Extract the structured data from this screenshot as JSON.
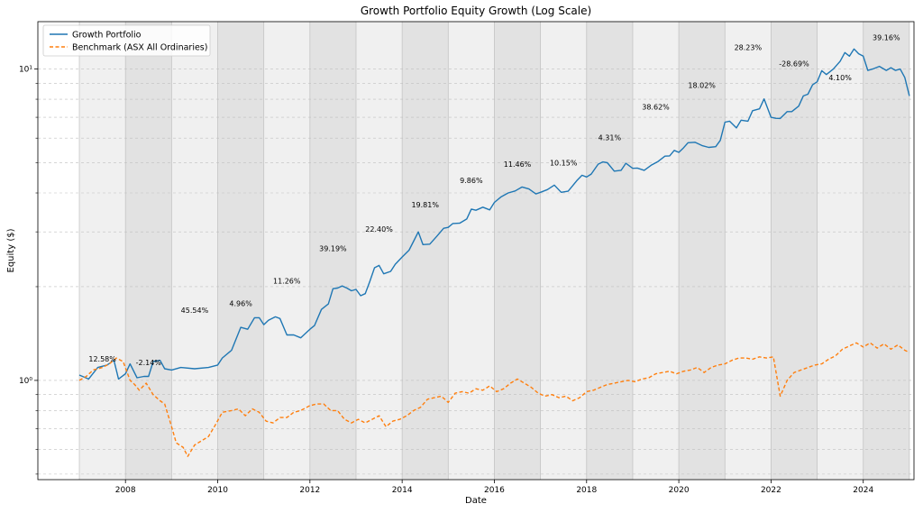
{
  "chart_data": {
    "type": "line",
    "title": "Growth Portfolio Equity Growth (Log Scale)",
    "xlabel": "Date",
    "ylabel": "Equity ($)",
    "y_scale": "log",
    "xlim": [
      2006.1,
      2025.1
    ],
    "ylim": [
      0.48,
      14.2
    ],
    "x_ticks": [
      2008,
      2010,
      2012,
      2014,
      2016,
      2018,
      2020,
      2022,
      2024
    ],
    "y_ticks": [
      {
        "value": 1,
        "label": "10⁰"
      },
      {
        "value": 10,
        "label": "10¹"
      }
    ],
    "grid": true,
    "legend_position": "top-left",
    "series": [
      {
        "name": "Growth Portfolio",
        "color": "#1f77b4",
        "style": "solid",
        "points": [
          [
            2007.0,
            1.04
          ],
          [
            2007.2,
            1.01
          ],
          [
            2007.4,
            1.1
          ],
          [
            2007.6,
            1.12
          ],
          [
            2007.75,
            1.16
          ],
          [
            2007.85,
            1.01
          ],
          [
            2008.0,
            1.05
          ],
          [
            2008.1,
            1.13
          ],
          [
            2008.25,
            1.02
          ],
          [
            2008.4,
            1.03
          ],
          [
            2008.5,
            1.03
          ],
          [
            2008.6,
            1.15
          ],
          [
            2008.75,
            1.16
          ],
          [
            2008.85,
            1.09
          ],
          [
            2009.0,
            1.08
          ],
          [
            2009.2,
            1.1
          ],
          [
            2009.5,
            1.09
          ],
          [
            2009.8,
            1.1
          ],
          [
            2010.0,
            1.12
          ],
          [
            2010.1,
            1.18
          ],
          [
            2010.3,
            1.25
          ],
          [
            2010.5,
            1.48
          ],
          [
            2010.65,
            1.46
          ],
          [
            2010.8,
            1.59
          ],
          [
            2010.9,
            1.59
          ],
          [
            2011.0,
            1.51
          ],
          [
            2011.1,
            1.56
          ],
          [
            2011.25,
            1.6
          ],
          [
            2011.35,
            1.58
          ],
          [
            2011.5,
            1.4
          ],
          [
            2011.65,
            1.4
          ],
          [
            2011.8,
            1.37
          ],
          [
            2012.0,
            1.46
          ],
          [
            2012.1,
            1.5
          ],
          [
            2012.25,
            1.69
          ],
          [
            2012.4,
            1.76
          ],
          [
            2012.5,
            1.97
          ],
          [
            2012.6,
            1.98
          ],
          [
            2012.7,
            2.01
          ],
          [
            2012.8,
            1.98
          ],
          [
            2012.9,
            1.94
          ],
          [
            2013.0,
            1.96
          ],
          [
            2013.1,
            1.87
          ],
          [
            2013.2,
            1.9
          ],
          [
            2013.3,
            2.08
          ],
          [
            2013.4,
            2.3
          ],
          [
            2013.5,
            2.34
          ],
          [
            2013.6,
            2.2
          ],
          [
            2013.75,
            2.24
          ],
          [
            2013.85,
            2.36
          ],
          [
            2014.0,
            2.49
          ],
          [
            2014.15,
            2.62
          ],
          [
            2014.25,
            2.8
          ],
          [
            2014.35,
            3.0
          ],
          [
            2014.45,
            2.73
          ],
          [
            2014.6,
            2.74
          ],
          [
            2014.75,
            2.9
          ],
          [
            2014.9,
            3.08
          ],
          [
            2015.0,
            3.1
          ],
          [
            2015.1,
            3.19
          ],
          [
            2015.25,
            3.2
          ],
          [
            2015.4,
            3.3
          ],
          [
            2015.5,
            3.55
          ],
          [
            2015.6,
            3.52
          ],
          [
            2015.75,
            3.6
          ],
          [
            2015.9,
            3.53
          ],
          [
            2016.0,
            3.73
          ],
          [
            2016.15,
            3.89
          ],
          [
            2016.3,
            4.0
          ],
          [
            2016.45,
            4.06
          ],
          [
            2016.6,
            4.18
          ],
          [
            2016.75,
            4.12
          ],
          [
            2016.9,
            3.97
          ],
          [
            2017.0,
            4.02
          ],
          [
            2017.15,
            4.1
          ],
          [
            2017.3,
            4.24
          ],
          [
            2017.45,
            4.02
          ],
          [
            2017.6,
            4.05
          ],
          [
            2017.8,
            4.4
          ],
          [
            2017.9,
            4.56
          ],
          [
            2018.0,
            4.5
          ],
          [
            2018.1,
            4.6
          ],
          [
            2018.25,
            4.95
          ],
          [
            2018.35,
            5.03
          ],
          [
            2018.45,
            5.0
          ],
          [
            2018.6,
            4.7
          ],
          [
            2018.75,
            4.73
          ],
          [
            2018.85,
            4.98
          ],
          [
            2019.0,
            4.8
          ],
          [
            2019.1,
            4.81
          ],
          [
            2019.25,
            4.73
          ],
          [
            2019.4,
            4.91
          ],
          [
            2019.55,
            5.05
          ],
          [
            2019.7,
            5.25
          ],
          [
            2019.8,
            5.26
          ],
          [
            2019.9,
            5.48
          ],
          [
            2020.0,
            5.4
          ],
          [
            2020.1,
            5.58
          ],
          [
            2020.2,
            5.8
          ],
          [
            2020.35,
            5.82
          ],
          [
            2020.5,
            5.68
          ],
          [
            2020.65,
            5.6
          ],
          [
            2020.8,
            5.63
          ],
          [
            2020.9,
            5.9
          ],
          [
            2021.0,
            6.75
          ],
          [
            2021.1,
            6.8
          ],
          [
            2021.25,
            6.47
          ],
          [
            2021.35,
            6.85
          ],
          [
            2021.5,
            6.8
          ],
          [
            2021.6,
            7.35
          ],
          [
            2021.75,
            7.45
          ],
          [
            2021.85,
            8.02
          ],
          [
            2022.0,
            7.0
          ],
          [
            2022.1,
            6.95
          ],
          [
            2022.2,
            6.94
          ],
          [
            2022.35,
            7.3
          ],
          [
            2022.45,
            7.3
          ],
          [
            2022.6,
            7.6
          ],
          [
            2022.7,
            8.2
          ],
          [
            2022.8,
            8.3
          ],
          [
            2022.9,
            8.9
          ],
          [
            2023.0,
            9.1
          ],
          [
            2023.1,
            9.88
          ],
          [
            2023.2,
            9.6
          ],
          [
            2023.35,
            10.0
          ],
          [
            2023.5,
            10.6
          ],
          [
            2023.6,
            11.3
          ],
          [
            2023.7,
            11.0
          ],
          [
            2023.8,
            11.6
          ],
          [
            2023.9,
            11.2
          ],
          [
            2024.0,
            11.0
          ],
          [
            2024.1,
            9.9
          ],
          [
            2024.2,
            10.0
          ],
          [
            2024.35,
            10.2
          ],
          [
            2024.5,
            9.9
          ],
          [
            2024.6,
            10.1
          ],
          [
            2024.7,
            9.9
          ],
          [
            2024.8,
            10.0
          ],
          [
            2024.9,
            9.4
          ],
          [
            2025.0,
            8.2
          ]
        ]
      },
      {
        "name": "Benchmark (ASX All Ordinaries)",
        "color": "#ff7f0e",
        "style": "dashed",
        "points": [
          [
            2007.0,
            1.0
          ],
          [
            2007.15,
            1.03
          ],
          [
            2007.3,
            1.08
          ],
          [
            2007.5,
            1.1
          ],
          [
            2007.65,
            1.13
          ],
          [
            2007.8,
            1.18
          ],
          [
            2007.95,
            1.15
          ],
          [
            2008.1,
            1.0
          ],
          [
            2008.2,
            0.97
          ],
          [
            2008.3,
            0.93
          ],
          [
            2008.45,
            0.98
          ],
          [
            2008.6,
            0.9
          ],
          [
            2008.75,
            0.86
          ],
          [
            2008.85,
            0.84
          ],
          [
            2009.0,
            0.71
          ],
          [
            2009.1,
            0.63
          ],
          [
            2009.25,
            0.61
          ],
          [
            2009.35,
            0.57
          ],
          [
            2009.5,
            0.62
          ],
          [
            2009.65,
            0.64
          ],
          [
            2009.8,
            0.66
          ],
          [
            2009.95,
            0.72
          ],
          [
            2010.1,
            0.79
          ],
          [
            2010.3,
            0.8
          ],
          [
            2010.45,
            0.81
          ],
          [
            2010.6,
            0.77
          ],
          [
            2010.75,
            0.81
          ],
          [
            2010.9,
            0.79
          ],
          [
            2011.05,
            0.74
          ],
          [
            2011.2,
            0.73
          ],
          [
            2011.35,
            0.76
          ],
          [
            2011.5,
            0.76
          ],
          [
            2011.65,
            0.79
          ],
          [
            2011.8,
            0.8
          ],
          [
            2012.0,
            0.83
          ],
          [
            2012.15,
            0.84
          ],
          [
            2012.3,
            0.84
          ],
          [
            2012.45,
            0.8
          ],
          [
            2012.6,
            0.8
          ],
          [
            2012.75,
            0.75
          ],
          [
            2012.9,
            0.73
          ],
          [
            2013.05,
            0.75
          ],
          [
            2013.2,
            0.73
          ],
          [
            2013.35,
            0.75
          ],
          [
            2013.5,
            0.77
          ],
          [
            2013.65,
            0.71
          ],
          [
            2013.8,
            0.74
          ],
          [
            2013.95,
            0.75
          ],
          [
            2014.1,
            0.77
          ],
          [
            2014.25,
            0.8
          ],
          [
            2014.4,
            0.82
          ],
          [
            2014.55,
            0.87
          ],
          [
            2014.7,
            0.88
          ],
          [
            2014.85,
            0.89
          ],
          [
            2015.0,
            0.85
          ],
          [
            2015.15,
            0.91
          ],
          [
            2015.3,
            0.92
          ],
          [
            2015.45,
            0.91
          ],
          [
            2015.6,
            0.94
          ],
          [
            2015.75,
            0.93
          ],
          [
            2015.9,
            0.96
          ],
          [
            2016.05,
            0.92
          ],
          [
            2016.2,
            0.94
          ],
          [
            2016.35,
            0.98
          ],
          [
            2016.5,
            1.01
          ],
          [
            2016.65,
            0.98
          ],
          [
            2016.8,
            0.95
          ],
          [
            2016.95,
            0.91
          ],
          [
            2017.1,
            0.89
          ],
          [
            2017.25,
            0.9
          ],
          [
            2017.4,
            0.88
          ],
          [
            2017.55,
            0.89
          ],
          [
            2017.7,
            0.86
          ],
          [
            2017.85,
            0.88
          ],
          [
            2018.0,
            0.92
          ],
          [
            2018.15,
            0.93
          ],
          [
            2018.3,
            0.95
          ],
          [
            2018.45,
            0.97
          ],
          [
            2018.6,
            0.98
          ],
          [
            2018.75,
            0.99
          ],
          [
            2018.9,
            1.0
          ],
          [
            2019.05,
            0.99
          ],
          [
            2019.2,
            1.01
          ],
          [
            2019.35,
            1.02
          ],
          [
            2019.5,
            1.05
          ],
          [
            2019.65,
            1.06
          ],
          [
            2019.8,
            1.07
          ],
          [
            2019.95,
            1.05
          ],
          [
            2020.1,
            1.07
          ],
          [
            2020.25,
            1.08
          ],
          [
            2020.4,
            1.1
          ],
          [
            2020.55,
            1.06
          ],
          [
            2020.7,
            1.1
          ],
          [
            2020.85,
            1.12
          ],
          [
            2021.0,
            1.13
          ],
          [
            2021.15,
            1.16
          ],
          [
            2021.3,
            1.18
          ],
          [
            2021.45,
            1.18
          ],
          [
            2021.6,
            1.17
          ],
          [
            2021.75,
            1.19
          ],
          [
            2021.9,
            1.18
          ],
          [
            2022.05,
            1.19
          ],
          [
            2022.2,
            0.89
          ],
          [
            2022.35,
            1.0
          ],
          [
            2022.5,
            1.06
          ],
          [
            2022.65,
            1.08
          ],
          [
            2022.8,
            1.1
          ],
          [
            2022.95,
            1.12
          ],
          [
            2023.1,
            1.13
          ],
          [
            2023.25,
            1.17
          ],
          [
            2023.4,
            1.2
          ],
          [
            2023.55,
            1.26
          ],
          [
            2023.7,
            1.29
          ],
          [
            2023.85,
            1.32
          ],
          [
            2024.0,
            1.28
          ],
          [
            2024.15,
            1.32
          ],
          [
            2024.3,
            1.27
          ],
          [
            2024.45,
            1.31
          ],
          [
            2024.6,
            1.26
          ],
          [
            2024.75,
            1.3
          ],
          [
            2024.9,
            1.25
          ],
          [
            2025.0,
            1.23
          ]
        ]
      }
    ],
    "shaded_years": [
      2007,
      2008,
      2009,
      2010,
      2011,
      2012,
      2013,
      2014,
      2015,
      2016,
      2017,
      2018,
      2019,
      2020,
      2021,
      2022,
      2023,
      2024
    ],
    "shade_colors": [
      "#f0f0f0",
      "#e2e2e2"
    ],
    "annotations": [
      {
        "text": "12.58%",
        "x": 2007.5,
        "y": 1.15
      },
      {
        "text": "-2.14%",
        "x": 2008.5,
        "y": 1.12
      },
      {
        "text": "45.54%",
        "x": 2009.5,
        "y": 1.65
      },
      {
        "text": "4.96%",
        "x": 2010.5,
        "y": 1.73
      },
      {
        "text": "11.26%",
        "x": 2011.5,
        "y": 2.05
      },
      {
        "text": "39.19%",
        "x": 2012.5,
        "y": 2.6
      },
      {
        "text": "22.40%",
        "x": 2013.5,
        "y": 3.0
      },
      {
        "text": "19.81%",
        "x": 2014.5,
        "y": 3.6
      },
      {
        "text": "9.86%",
        "x": 2015.5,
        "y": 4.3
      },
      {
        "text": "11.46%",
        "x": 2016.5,
        "y": 4.85
      },
      {
        "text": "10.15%",
        "x": 2017.5,
        "y": 4.9
      },
      {
        "text": "4.31%",
        "x": 2018.5,
        "y": 5.9
      },
      {
        "text": "38.62%",
        "x": 2019.5,
        "y": 7.4
      },
      {
        "text": "18.02%",
        "x": 2020.5,
        "y": 8.7
      },
      {
        "text": "28.23%",
        "x": 2021.5,
        "y": 11.5
      },
      {
        "text": "-28.69%",
        "x": 2022.5,
        "y": 10.2
      },
      {
        "text": "4.10%",
        "x": 2023.5,
        "y": 9.2
      },
      {
        "text": "39.16%",
        "x": 2024.5,
        "y": 12.4
      }
    ]
  }
}
